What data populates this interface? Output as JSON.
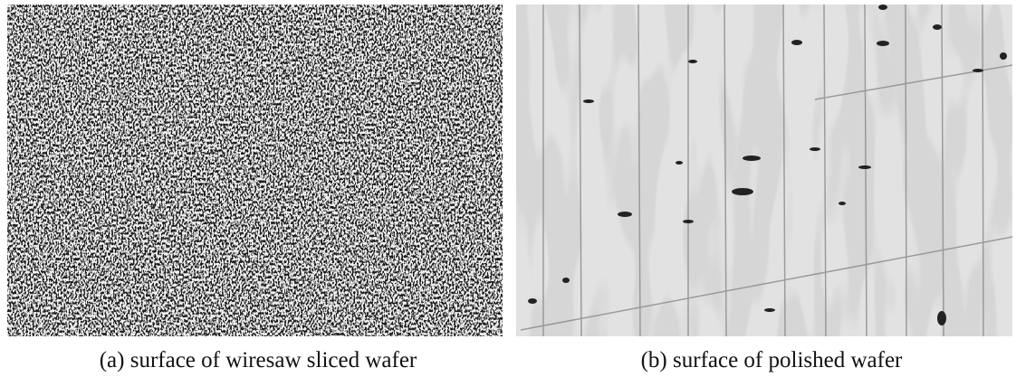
{
  "panels": [
    {
      "caption": "(a) surface of wiresaw sliced wafer"
    },
    {
      "caption": "(b) surface of polished wafer"
    }
  ]
}
